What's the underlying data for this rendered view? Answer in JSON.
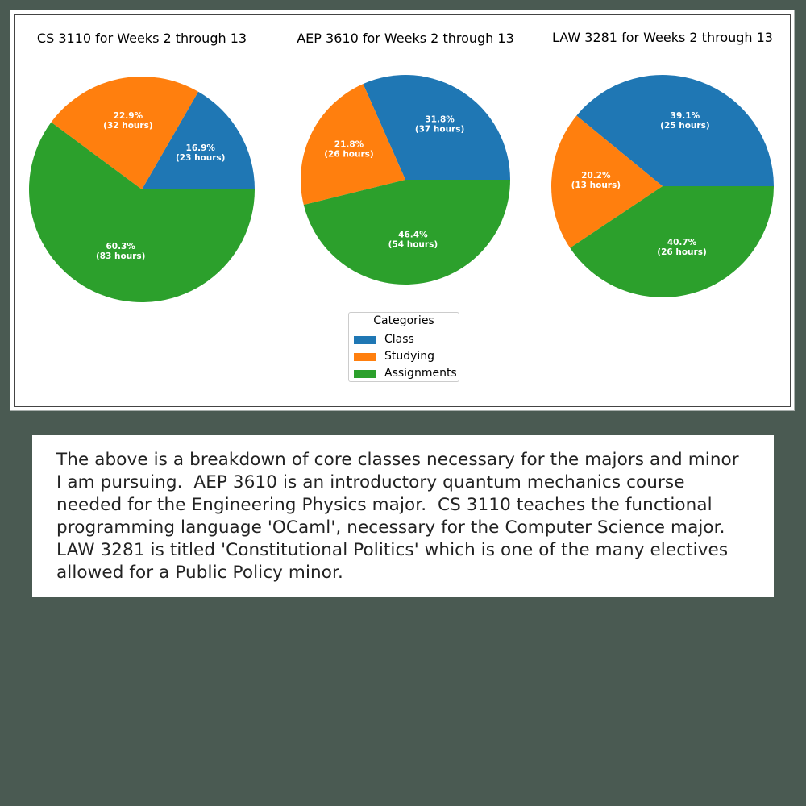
{
  "chart_data": [
    {
      "type": "pie",
      "title": "CS 3110 for Weeks 2 through 13",
      "slices": [
        {
          "category": "Class",
          "value": 23,
          "percent_label": "16.9%",
          "hours_label": "(23 hours)"
        },
        {
          "category": "Studying",
          "value": 32,
          "percent_label": "22.9%",
          "hours_label": "(32 hours)"
        },
        {
          "category": "Assignments",
          "value": 83,
          "percent_label": "60.3%",
          "hours_label": "(83 hours)"
        }
      ]
    },
    {
      "type": "pie",
      "title": "AEP 3610 for Weeks 2 through 13",
      "slices": [
        {
          "category": "Class",
          "value": 37,
          "percent_label": "31.8%",
          "hours_label": "(37 hours)"
        },
        {
          "category": "Studying",
          "value": 26,
          "percent_label": "21.8%",
          "hours_label": "(26 hours)"
        },
        {
          "category": "Assignments",
          "value": 54,
          "percent_label": "46.4%",
          "hours_label": "(54 hours)"
        }
      ]
    },
    {
      "type": "pie",
      "title": "LAW 3281 for Weeks 2 through 13",
      "slices": [
        {
          "category": "Class",
          "value": 25,
          "percent_label": "39.1%",
          "hours_label": "(25 hours)"
        },
        {
          "category": "Studying",
          "value": 13,
          "percent_label": "20.2%",
          "hours_label": "(13 hours)"
        },
        {
          "category": "Assignments",
          "value": 26,
          "percent_label": "40.7%",
          "hours_label": "(26 hours)"
        }
      ]
    }
  ],
  "legend": {
    "title": "Categories",
    "placement": "bottom-center",
    "entries": [
      {
        "label": "Class",
        "color": "#1f77b4"
      },
      {
        "label": "Studying",
        "color": "#ff7f0e"
      },
      {
        "label": "Assignments",
        "color": "#2ca02c"
      }
    ]
  },
  "colors": {
    "Class": "#1f77b4",
    "Studying": "#ff7f0e",
    "Assignments": "#2ca02c"
  },
  "caption": "The above is a breakdown of core classes necessary for the majors and minor\nI am pursuing.  AEP 3610 is an introductory quantum mechanics course\nneeded for the Engineering Physics major.  CS 3110 teaches the functional\nprogramming language 'OCaml', necessary for the Computer Science major.\nLAW 3281 is titled 'Constitutional Politics' which is one of the many electives\nallowed for a Public Policy minor."
}
